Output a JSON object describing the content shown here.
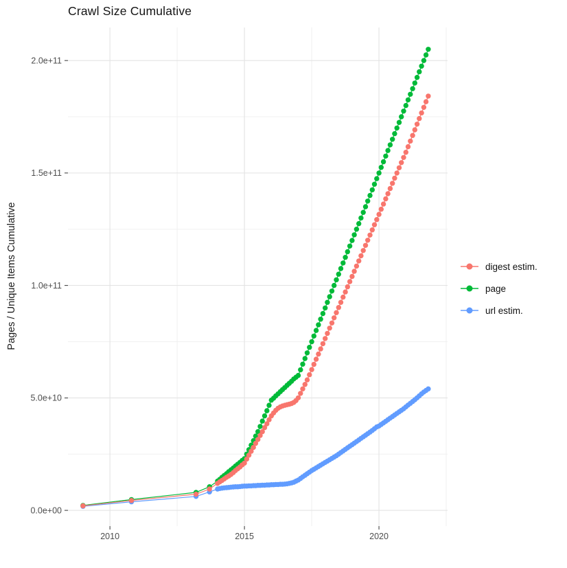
{
  "title": "Crawl Size Cumulative",
  "y_axis_title": "Pages / Unique Items Cumulative",
  "colors": {
    "digest": "#F8766D",
    "page": "#00BA38",
    "url": "#619CFF",
    "grid_major": "#E3E3E3",
    "grid_minor": "#F0F0F0",
    "tick_mark": "#333333",
    "tick_text": "#4D4D4D"
  },
  "axes": {
    "x": {
      "min": 2008.44,
      "max": 2022.55,
      "ticks": [
        {
          "value": 2010,
          "label": "2010"
        },
        {
          "value": 2015,
          "label": "2015"
        },
        {
          "value": 2020,
          "label": "2020"
        }
      ],
      "minor": [
        2012.5,
        2017.5,
        2022.5
      ]
    },
    "y": {
      "unit_e9": true,
      "min": -7,
      "max": 214.7,
      "ticks": [
        {
          "value": 0,
          "label": "0.0e+00"
        },
        {
          "value": 50,
          "label": "5.0e+10"
        },
        {
          "value": 100,
          "label": "1.0e+11"
        },
        {
          "value": 150,
          "label": "1.5e+11"
        },
        {
          "value": 200,
          "label": "2.0e+11"
        }
      ],
      "minor": [
        25,
        75,
        125,
        175
      ]
    }
  },
  "legend": {
    "items": [
      {
        "label": "digest estim.",
        "color": "#F8766D"
      },
      {
        "label": "page",
        "color": "#00BA38"
      },
      {
        "label": "url estim.",
        "color": "#619CFF"
      }
    ]
  },
  "chart_data": {
    "type": "scatter",
    "title": "Crawl Size Cumulative",
    "xlabel": "",
    "ylabel": "Pages / Unique Items Cumulative",
    "value_unit": "1e9 items (billions), cumulative",
    "xlim": [
      2008.44,
      2022.55
    ],
    "ylim_e9": [
      -7,
      214.7
    ],
    "grid": true,
    "legend_position": "right",
    "series": [
      {
        "name": "digest estim.",
        "color": "#F8766D",
        "early_points": [
          [
            2009.0,
            2.0
          ],
          [
            2010.8,
            4.4
          ],
          [
            2013.2,
            7.2
          ],
          [
            2013.7,
            9.5
          ]
        ],
        "monthly_start": 2014.0,
        "monthly_step_years": 0.0833333,
        "monthly_values_e9": [
          12.0,
          12.7,
          13.3,
          14.0,
          14.7,
          15.3,
          16.0,
          16.8,
          17.7,
          18.5,
          19.3,
          20.2,
          21.0,
          22.8,
          24.5,
          26.3,
          28.0,
          29.8,
          31.5,
          33.3,
          35.0,
          36.8,
          38.5,
          40.3,
          42.0,
          43.3,
          44.5,
          45.4,
          46.0,
          46.4,
          46.7,
          47.0,
          47.2,
          47.5,
          48.0,
          48.8,
          50.0,
          52.0,
          54.0,
          56.0,
          58.0,
          60.3,
          62.6,
          64.9,
          67.2,
          69.5,
          71.8,
          74.1,
          76.4,
          78.7,
          81.0,
          83.3,
          85.6,
          87.9,
          90.2,
          92.5,
          94.8,
          97.1,
          99.4,
          101.7,
          104.0,
          106.3,
          108.6,
          110.9,
          113.2,
          115.5,
          117.8,
          120.1,
          122.4,
          124.7,
          127.0,
          129.3,
          131.6,
          133.9,
          136.2,
          138.5,
          140.8,
          143.1,
          145.4,
          147.7,
          150.0,
          152.3,
          154.6,
          156.9,
          159.2,
          161.7,
          164.2,
          166.7,
          169.2,
          171.7,
          174.2,
          176.7,
          179.2,
          181.7,
          184.2
        ]
      },
      {
        "name": "page",
        "color": "#00BA38",
        "early_points": [
          [
            2009.0,
            2.2
          ],
          [
            2010.8,
            4.8
          ],
          [
            2013.2,
            8.0
          ],
          [
            2013.7,
            10.5
          ]
        ],
        "monthly_start": 2014.0,
        "monthly_step_years": 0.0833333,
        "monthly_values_e9": [
          13.0,
          13.8,
          14.7,
          15.5,
          16.3,
          17.2,
          18.0,
          18.8,
          19.7,
          20.5,
          21.3,
          22.2,
          23.0,
          25.0,
          27.0,
          29.0,
          31.0,
          33.0,
          35.0,
          37.3,
          39.7,
          42.0,
          44.3,
          46.7,
          49.0,
          49.9,
          50.9,
          51.8,
          52.8,
          53.7,
          54.6,
          55.6,
          56.5,
          57.4,
          58.4,
          59.2,
          60.0,
          62.5,
          65.0,
          67.5,
          70.0,
          72.5,
          75.0,
          77.5,
          80.0,
          82.5,
          85.0,
          87.5,
          90.0,
          92.5,
          95.0,
          97.5,
          100.0,
          102.5,
          105.0,
          107.5,
          110.0,
          112.5,
          115.0,
          117.5,
          120.0,
          122.5,
          125.0,
          127.5,
          130.0,
          132.5,
          135.0,
          137.5,
          140.0,
          142.5,
          145.0,
          147.5,
          150.0,
          152.5,
          155.0,
          157.5,
          160.0,
          162.5,
          165.0,
          167.5,
          170.0,
          172.5,
          175.0,
          177.5,
          180.0,
          182.5,
          185.0,
          187.5,
          190.0,
          192.5,
          195.0,
          197.5,
          200.0,
          202.5,
          205.0
        ]
      },
      {
        "name": "url estim.",
        "color": "#619CFF",
        "early_points": [
          [
            2009.0,
            1.8
          ],
          [
            2010.8,
            3.8
          ],
          [
            2013.2,
            6.2
          ],
          [
            2013.7,
            8.2
          ]
        ],
        "monthly_start": 2014.0,
        "monthly_step_years": 0.0833333,
        "monthly_values_e9": [
          9.5,
          9.7,
          9.9,
          10.0,
          10.1,
          10.2,
          10.3,
          10.4,
          10.5,
          10.5,
          10.6,
          10.7,
          10.8,
          10.8,
          10.9,
          10.9,
          11.0,
          11.0,
          11.1,
          11.1,
          11.2,
          11.2,
          11.3,
          11.3,
          11.4,
          11.4,
          11.5,
          11.5,
          11.6,
          11.6,
          11.7,
          11.8,
          12.0,
          12.2,
          12.5,
          13.0,
          13.5,
          14.2,
          14.9,
          15.6,
          16.3,
          17.0,
          17.7,
          18.3,
          18.9,
          19.5,
          20.1,
          20.7,
          21.3,
          21.9,
          22.5,
          23.1,
          23.7,
          24.3,
          25.0,
          25.7,
          26.4,
          27.1,
          27.8,
          28.5,
          29.2,
          29.9,
          30.6,
          31.3,
          32.0,
          32.7,
          33.4,
          34.1,
          34.8,
          35.5,
          36.3,
          37.1,
          37.5,
          38.2,
          38.9,
          39.6,
          40.3,
          41.0,
          41.7,
          42.4,
          43.1,
          43.8,
          44.5,
          45.2,
          46.0,
          46.8,
          47.6,
          48.4,
          49.2,
          50.0,
          50.9,
          51.8,
          52.6,
          53.3,
          54.0
        ]
      }
    ]
  }
}
